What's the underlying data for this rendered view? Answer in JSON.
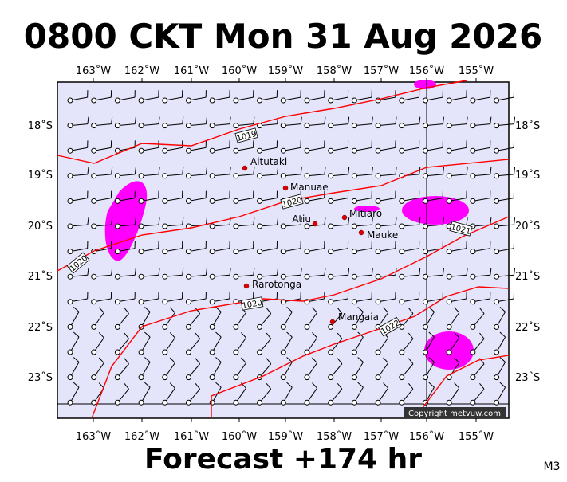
{
  "header": {
    "title": "0800 CKT Mon 31 Aug 2026"
  },
  "map": {
    "lon_labels": [
      "163˚W",
      "162˚W",
      "161˚W",
      "160˚W",
      "159˚W",
      "158˚W",
      "157˚W",
      "156˚W",
      "155˚W"
    ],
    "lat_labels": [
      "18˚S",
      "19˚S",
      "20˚S",
      "21˚S",
      "22˚S",
      "23˚S"
    ],
    "places": [
      "Aitutaki",
      "Manuae",
      "Atiu",
      "Mitiaro",
      "Mauke",
      "Rarotonga",
      "Mangaia"
    ],
    "isobar_labels": [
      "1019",
      "1020",
      "1021",
      "1020",
      "1020",
      "1022"
    ],
    "copyright": "Copyright metvuw.com"
  },
  "footer": {
    "forecast": "Forecast +174 hr",
    "code": "M3"
  }
}
